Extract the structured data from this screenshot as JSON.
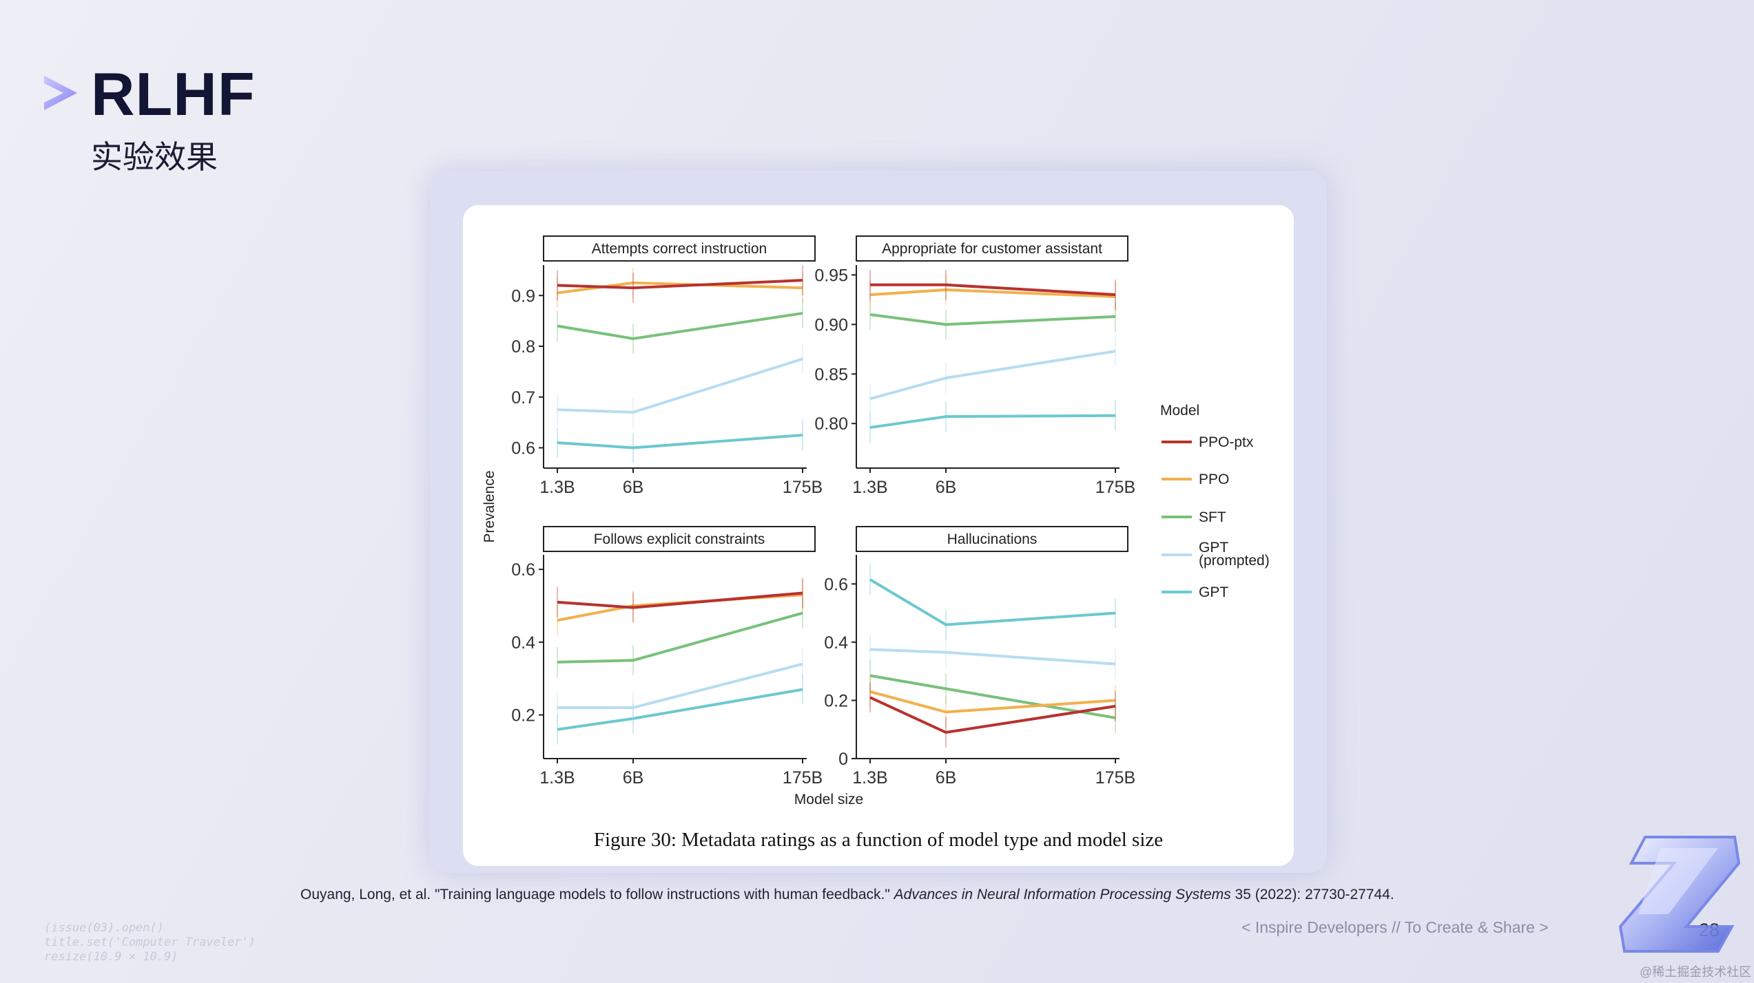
{
  "slide": {
    "title": "RLHF",
    "subtitle": "实验效果",
    "caption": "Figure 30: Metadata ratings as a function of model type and model size",
    "citation_main": "Ouyang, Long, et al. \"Training language models to follow instructions with human feedback.\" ",
    "citation_journal": "Advances in Neural Information Processing Systems",
    "citation_tail": " 35 (2022): 27730-27744.",
    "footer_tag": "< Inspire Developers  //  To Create & Share >",
    "page_number": "28",
    "code_lines": [
      "(issue(03).open()",
      "title.set('Computer Traveler')",
      "resize(10.9 × 10.9)"
    ],
    "watermark": "@稀土掘金技术社区"
  },
  "chart_data": {
    "type": "line",
    "x": [
      "1.3B",
      "6B",
      "175B"
    ],
    "xlabel": "Model size",
    "ylabel": "Prevalence",
    "legend_title": "Model",
    "legend_position": "right",
    "series": [
      {
        "name": "PPO-ptx",
        "color": "#b8322e"
      },
      {
        "name": "PPO",
        "color": "#f2b04d"
      },
      {
        "name": "SFT",
        "color": "#78c17a"
      },
      {
        "name": "GPT\n(prompted)",
        "color": "#b7dcf1"
      },
      {
        "name": "GPT",
        "color": "#6cc8d0"
      }
    ],
    "panels": [
      {
        "title": "Attempts correct instruction",
        "ylim": [
          0.56,
          0.96
        ],
        "yticks": [
          0.6,
          0.7,
          0.8,
          0.9
        ],
        "ytick_labels": [
          "0.6",
          "0.7",
          "0.8",
          "0.9"
        ],
        "values": [
          [
            0.92,
            0.915,
            0.93
          ],
          [
            0.905,
            0.925,
            0.915
          ],
          [
            0.84,
            0.815,
            0.865
          ],
          [
            0.675,
            0.67,
            0.775
          ],
          [
            0.61,
            0.6,
            0.625
          ]
        ]
      },
      {
        "title": "Appropriate for customer assistant",
        "ylim": [
          0.755,
          0.96
        ],
        "yticks": [
          0.8,
          0.85,
          0.9,
          0.95
        ],
        "ytick_labels": [
          "0.80",
          "0.85",
          "0.90",
          "0.95"
        ],
        "values": [
          [
            0.94,
            0.94,
            0.93
          ],
          [
            0.93,
            0.935,
            0.928
          ],
          [
            0.91,
            0.9,
            0.908
          ],
          [
            0.825,
            0.846,
            0.873
          ],
          [
            0.796,
            0.807,
            0.808
          ]
        ]
      },
      {
        "title": "Follows explicit constraints",
        "ylim": [
          0.08,
          0.64
        ],
        "yticks": [
          0.2,
          0.4,
          0.6
        ],
        "ytick_labels": [
          "0.2",
          "0.4",
          "0.6"
        ],
        "values": [
          [
            0.51,
            0.495,
            0.535
          ],
          [
            0.46,
            0.5,
            0.53
          ],
          [
            0.345,
            0.35,
            0.48
          ],
          [
            0.22,
            0.22,
            0.34
          ],
          [
            0.16,
            0.19,
            0.27
          ]
        ]
      },
      {
        "title": "Hallucinations",
        "ylim": [
          0.0,
          0.7
        ],
        "yticks": [
          0,
          0.2,
          0.4,
          0.6
        ],
        "ytick_labels": [
          "0",
          "0.2",
          "0.4",
          "0.6"
        ],
        "values": [
          [
            0.21,
            0.09,
            0.18
          ],
          [
            0.23,
            0.16,
            0.2
          ],
          [
            0.285,
            0.24,
            0.14
          ],
          [
            0.375,
            0.365,
            0.325
          ],
          [
            0.615,
            0.46,
            0.5
          ]
        ]
      }
    ]
  }
}
